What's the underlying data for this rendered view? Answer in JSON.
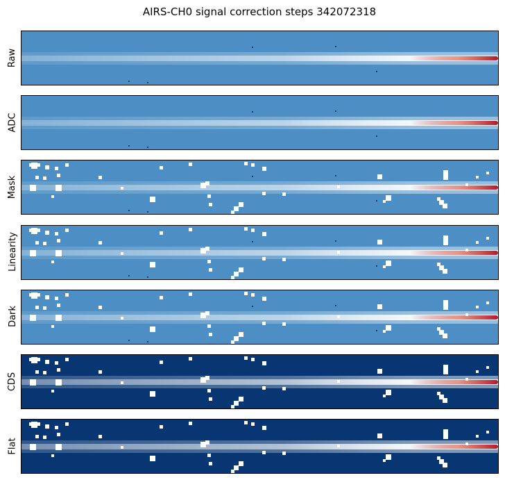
{
  "title": "AIRS-CH0 signal correction steps 342072318",
  "chart_data": {
    "type": "heatmap",
    "title": "AIRS-CH0 signal correction steps 342072318",
    "colormap": "RdBu_r",
    "axes_ticks": "none",
    "panels": [
      {
        "label": "Raw",
        "background": "light",
        "masked": false
      },
      {
        "label": "ADC",
        "background": "light",
        "masked": false
      },
      {
        "label": "Mask",
        "background": "light",
        "masked": true
      },
      {
        "label": "Linearity",
        "background": "light",
        "masked": true
      },
      {
        "label": "Dark",
        "background": "light",
        "masked": true
      },
      {
        "label": "CDS",
        "background": "dark",
        "masked": true
      },
      {
        "label": "Flat",
        "background": "dark",
        "masked": true
      }
    ]
  },
  "colors": {
    "light_bg": "#4d8fc4",
    "dark_bg": "#083672",
    "trace_white": "#f4f8fb",
    "trace_red": "#b2182b",
    "mask": "#ffffff"
  }
}
